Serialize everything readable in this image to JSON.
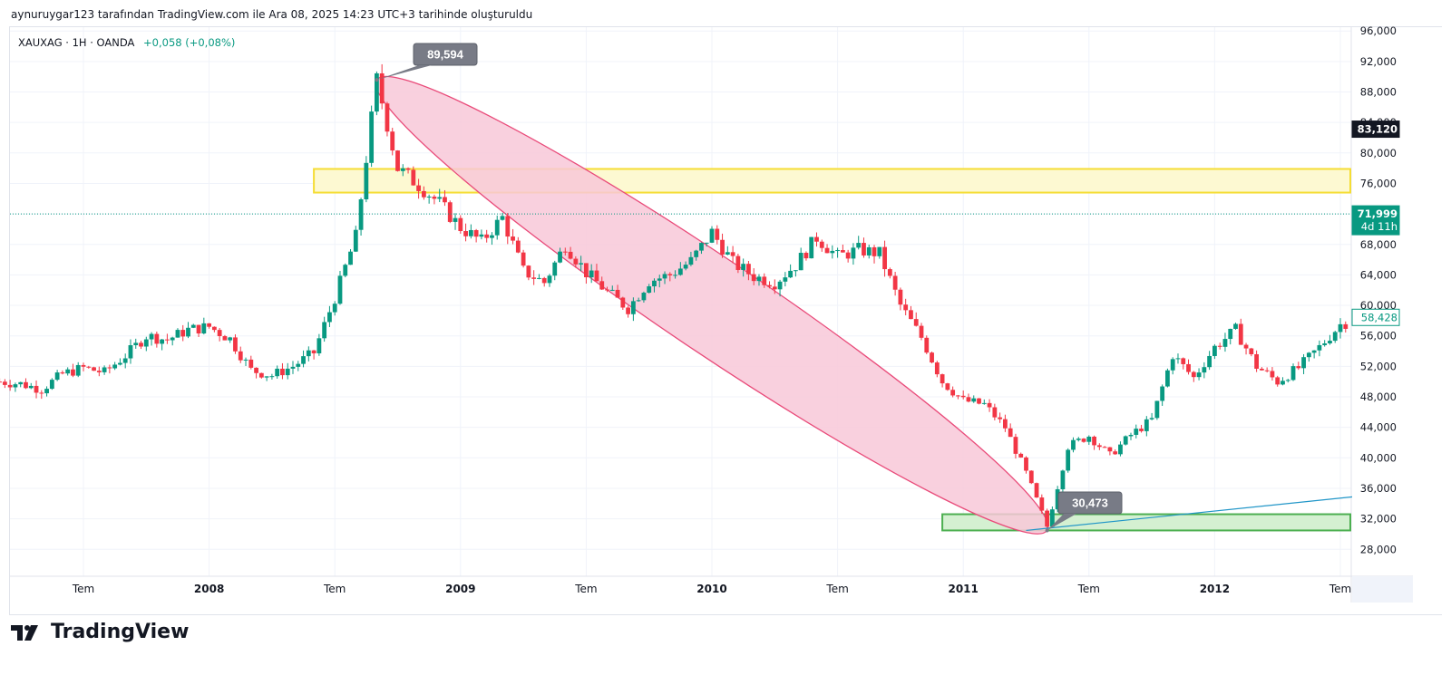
{
  "caption": "aynuruygar123 tarafından TradingView.com ile Ara 08, 2025 14:23 UTC+3 tarihinde oluşturuldu",
  "legend": {
    "symbol": "XAUXAG · 1H · OANDA",
    "change": "+0,058 (+0,08%)"
  },
  "brand": "TradingView",
  "colors": {
    "up": "#089981",
    "down": "#f23645",
    "ellipse_fill": "#f8c8d8",
    "ellipse_stroke": "#e94b7a",
    "yellow_fill": "#fdf9d2",
    "yellow_stroke": "#f5dd35",
    "green_fill": "#d4f0d1",
    "green_stroke": "#4caf50",
    "trend": "#2196c8",
    "price_line": "#089981"
  },
  "price_axis": {
    "ticks": [
      "96,000",
      "92,000",
      "88,000",
      "84,000",
      "80,000",
      "76,000",
      "72,000",
      "68,000",
      "64,000",
      "60,000",
      "56,000",
      "52,000",
      "48,000",
      "44,000",
      "40,000",
      "36,000",
      "32,000",
      "28,000"
    ],
    "current_price_label": "71,999",
    "countdown_label": "4d 11h",
    "marker_label": "83,120",
    "alt_label": "58,428"
  },
  "time_axis": {
    "labels": [
      "Tem",
      "2008",
      "Tem",
      "2009",
      "Tem",
      "2010",
      "Tem",
      "2011",
      "Tem",
      "2012",
      "Tem"
    ],
    "bold": [
      false,
      true,
      false,
      true,
      false,
      true,
      false,
      true,
      false,
      true,
      false
    ]
  },
  "annotations": {
    "high_label": "89,594",
    "low_label": "30,473"
  },
  "chart_data": {
    "type": "candlestick",
    "symbol": "XAUXAG",
    "exchange": "OANDA",
    "y_range": [
      25000,
      98000
    ],
    "price_levels": {
      "high": 89594,
      "low": 30473,
      "last": 71999,
      "marked": 83120,
      "secondary": 58428
    },
    "zones": [
      {
        "kind": "resistance",
        "y_from": 74800,
        "y_to": 77900,
        "x_from": "2008-06",
        "x_to": "2012-08"
      },
      {
        "kind": "support",
        "y_from": 30473,
        "y_to": 32600,
        "x_from": "2010-12",
        "x_to": "2012-08"
      }
    ],
    "trendline": {
      "from": [
        "2011-04",
        30473
      ],
      "to": [
        "2012-08",
        35000
      ]
    },
    "close_path": [
      [
        "2007-03",
        50000
      ],
      [
        "2007-04",
        49700
      ],
      [
        "2007-05",
        49000
      ],
      [
        "2007-06",
        51000
      ],
      [
        "2007-07",
        51800
      ],
      [
        "2007-08",
        51200
      ],
      [
        "2007-09",
        53400
      ],
      [
        "2007-10",
        56000
      ],
      [
        "2007-11",
        55500
      ],
      [
        "2007-12",
        56800
      ],
      [
        "2008-01",
        57200
      ],
      [
        "2008-02",
        55600
      ],
      [
        "2008-03",
        51500
      ],
      [
        "2008-04",
        50800
      ],
      [
        "2008-05",
        52000
      ],
      [
        "2008-06",
        53800
      ],
      [
        "2008-07",
        61000
      ],
      [
        "2008-08",
        69000
      ],
      [
        "2008-09",
        89594
      ],
      [
        "2008-10",
        78000
      ],
      [
        "2008-11",
        75800
      ],
      [
        "2008-12",
        73400
      ],
      [
        "2009-01",
        70200
      ],
      [
        "2009-02",
        68400
      ],
      [
        "2009-03",
        71500
      ],
      [
        "2009-04",
        64500
      ],
      [
        "2009-05",
        63000
      ],
      [
        "2009-06",
        68000
      ],
      [
        "2009-07",
        64300
      ],
      [
        "2009-08",
        61800
      ],
      [
        "2009-09",
        59600
      ],
      [
        "2009-10",
        63200
      ],
      [
        "2009-11",
        64000
      ],
      [
        "2009-12",
        65800
      ],
      [
        "2010-01",
        69600
      ],
      [
        "2010-02",
        65600
      ],
      [
        "2010-03",
        63800
      ],
      [
        "2010-04",
        63000
      ],
      [
        "2010-05",
        65300
      ],
      [
        "2010-06",
        68900
      ],
      [
        "2010-07",
        66400
      ],
      [
        "2010-08",
        67300
      ],
      [
        "2010-09",
        66800
      ],
      [
        "2010-10",
        60000
      ],
      [
        "2010-11",
        55800
      ],
      [
        "2010-12",
        50000
      ],
      [
        "2011-01",
        47500
      ],
      [
        "2011-02",
        47000
      ],
      [
        "2011-03",
        44000
      ],
      [
        "2011-04",
        38000
      ],
      [
        "2011-05",
        31000
      ],
      [
        "2011-06",
        41500
      ],
      [
        "2011-07",
        42900
      ],
      [
        "2011-08",
        40300
      ],
      [
        "2011-09",
        43000
      ],
      [
        "2011-10",
        45000
      ],
      [
        "2011-11",
        53500
      ],
      [
        "2011-12",
        50500
      ],
      [
        "2012-01",
        54500
      ],
      [
        "2012-02",
        56800
      ],
      [
        "2012-03",
        52000
      ],
      [
        "2012-04",
        50000
      ],
      [
        "2012-05",
        51800
      ],
      [
        "2012-06",
        54500
      ],
      [
        "2012-07",
        57500
      ],
      [
        "2012-08",
        58428
      ]
    ]
  }
}
